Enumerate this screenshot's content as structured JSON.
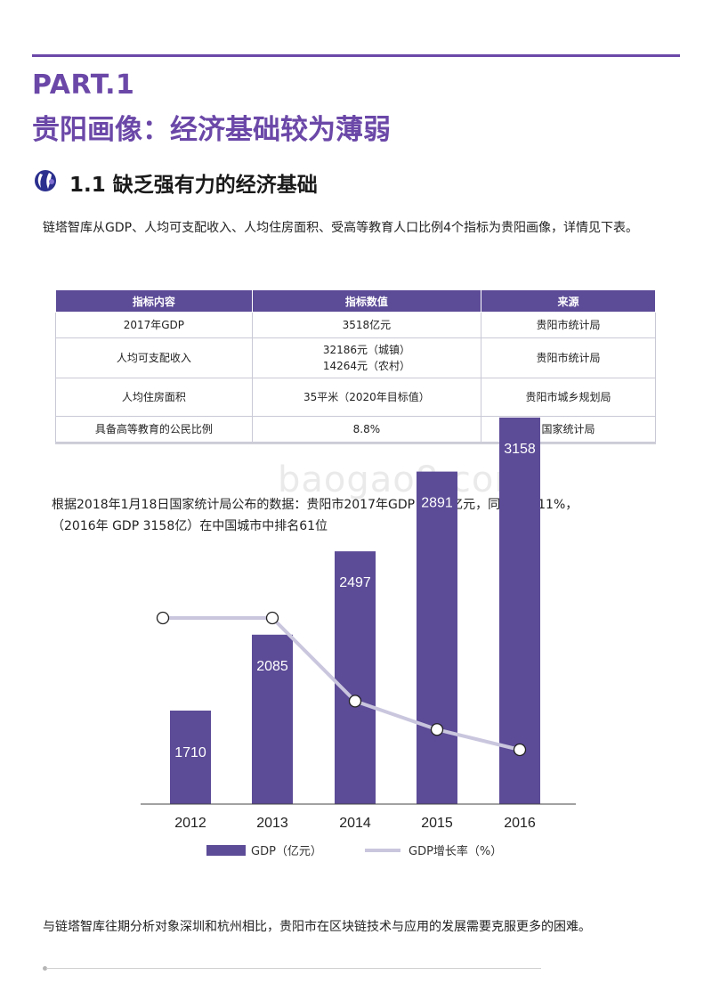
{
  "header": {
    "part_label": "PART.1",
    "headline": "贵阳画像：经济基础较为薄弱"
  },
  "section": {
    "title": "1.1 缺乏强有力的经济基础"
  },
  "intro_text": "链塔智库从GDP、人均可支配收入、人均住房面积、受高等教育人口比例4个指标为贵阳画像，详情见下表。",
  "table": {
    "headers": [
      "指标内容",
      "指标数值",
      "来源"
    ],
    "rows": [
      {
        "indicator": "2017年GDP",
        "value": "3518亿元",
        "value2": "",
        "source": "贵阳市统计局"
      },
      {
        "indicator": "人均可支配收入",
        "value": "32186元（城镇）",
        "value2": "14264元（农村）",
        "source": "贵阳市统计局"
      },
      {
        "indicator": "人均住房面积",
        "value": "35平米（2020年目标值）",
        "value2": "",
        "source": "贵阳市城乡规划局"
      },
      {
        "indicator": "具备高等教育的公民比例",
        "value": "8.8%",
        "value2": "",
        "source": "国家统计局"
      }
    ]
  },
  "watermark": "baogao8.com",
  "data_note": {
    "line1": "根据2018年1月18日国家统计局公布的数据：贵阳市2017年GDP 3518亿元，同比增长11%，",
    "line2": "（2016年 GDP 3158亿）在中国城市中排名61位"
  },
  "chart_data": {
    "type": "bar",
    "categories": [
      "2012",
      "2013",
      "2014",
      "2015",
      "2016"
    ],
    "series": [
      {
        "name": "GDP（亿元）",
        "type": "bar",
        "values": [
          1710,
          2085,
          2497,
          2891,
          3158
        ],
        "color": "#5c4b97"
      },
      {
        "name": "GDP增长率（%）",
        "type": "line",
        "values": [
          18.0,
          18.0,
          13.9,
          12.5,
          11.5
        ],
        "color": "#c9c6de"
      }
    ],
    "bar_ylim": [
      0,
      3400
    ],
    "line_ylim": [
      0,
      22
    ],
    "legend_position": "bottom",
    "grid": false
  },
  "closing_text": "与链塔智库往期分析对象深圳和杭州相比，贵阳市在区块链技术与应用的发展需要克服更多的困难。"
}
